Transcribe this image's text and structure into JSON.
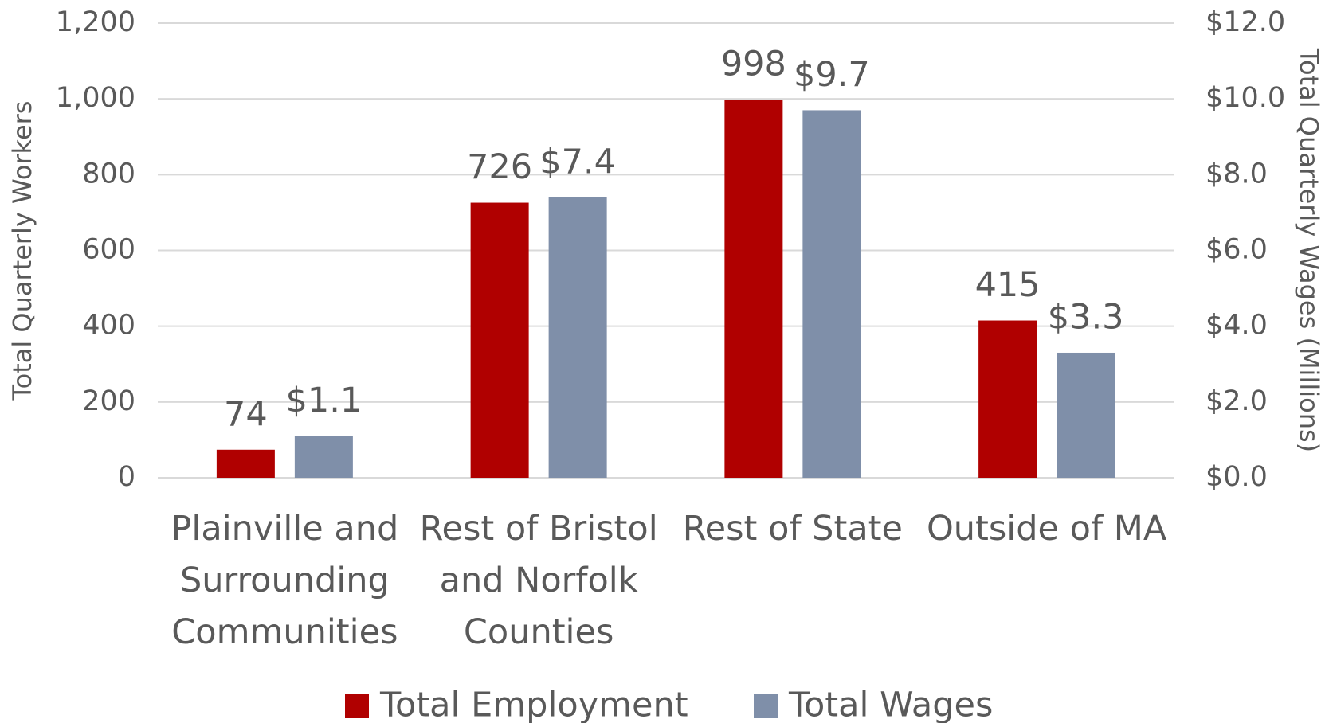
{
  "chart_data": {
    "type": "bar",
    "categories": [
      "Plainville and Surrounding Communities",
      "Rest of Bristol and Norfolk Counties",
      "Rest of State",
      "Outside of MA"
    ],
    "series": [
      {
        "name": "Total Employment",
        "color": "#b00000",
        "values": [
          74,
          726,
          998,
          415
        ]
      },
      {
        "name": "Total Wages",
        "color": "#7f8fa9",
        "axis": "y2",
        "values": [
          1.1,
          7.4,
          9.7,
          3.3
        ],
        "value_labels": [
          "$1.1",
          "$7.4",
          "$9.7",
          "$3.3"
        ]
      }
    ],
    "ylabel": "Total Quarterly Workers",
    "y2label": "Total Quarterly Wages (Millions)",
    "ylim": [
      0,
      1200
    ],
    "yticks": [
      0,
      200,
      400,
      600,
      800,
      {
        "value": 1000,
        "label": "1,000"
      },
      {
        "value": 1200,
        "label": "1,200"
      }
    ],
    "y2lim": [
      0,
      12
    ],
    "y2ticks": [
      {
        "value": 0,
        "label": "$0.0"
      },
      {
        "value": 2,
        "label": "$2.0"
      },
      {
        "value": 4,
        "label": "$4.0"
      },
      {
        "value": 6,
        "label": "$6.0"
      },
      {
        "value": 8,
        "label": "$8.0"
      },
      {
        "value": 10,
        "label": "$10.0"
      },
      {
        "value": 12,
        "label": "$12.0"
      }
    ],
    "grid": true,
    "legend": "bottom"
  }
}
